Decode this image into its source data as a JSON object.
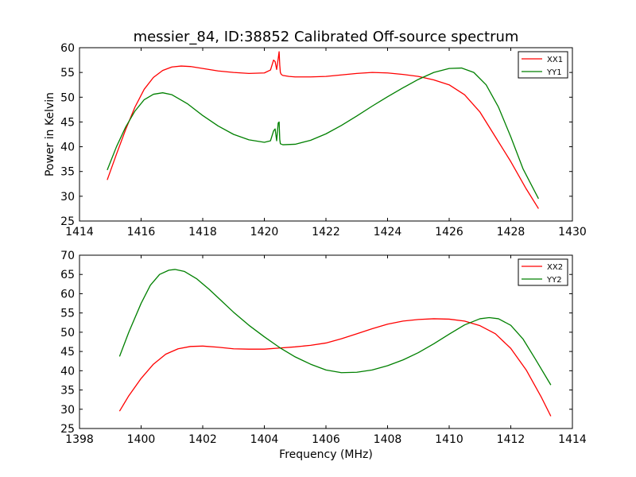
{
  "figure": {
    "title": "messier_84, ID:38852 Calibrated Off-source spectrum",
    "ylabel": "Power in Kelvin",
    "xlabel": "Frequency (MHz)"
  },
  "chart_data": [
    {
      "type": "line",
      "title": "messier_84, ID:38852 Calibrated Off-source spectrum",
      "xlabel": "",
      "ylabel": "Power in Kelvin",
      "xlim": [
        1414,
        1430
      ],
      "ylim": [
        25,
        60
      ],
      "xticks": [
        1414,
        1416,
        1418,
        1420,
        1422,
        1424,
        1426,
        1428,
        1430
      ],
      "yticks": [
        25,
        30,
        35,
        40,
        45,
        50,
        55,
        60
      ],
      "grid": false,
      "legend": "top-right",
      "series": [
        {
          "name": "XX1",
          "color": "#ff0000",
          "x": [
            1414.9,
            1415.2,
            1415.5,
            1415.8,
            1416.1,
            1416.4,
            1416.7,
            1417.0,
            1417.3,
            1417.6,
            1418.0,
            1418.5,
            1419.0,
            1419.5,
            1420.0,
            1420.2,
            1420.3,
            1420.35,
            1420.4,
            1420.45,
            1420.48,
            1420.5,
            1420.52,
            1420.55,
            1420.6,
            1420.8,
            1421.0,
            1421.5,
            1422.0,
            1422.5,
            1423.0,
            1423.5,
            1424.0,
            1424.5,
            1425.0,
            1425.5,
            1426.0,
            1426.5,
            1427.0,
            1427.5,
            1428.0,
            1428.5,
            1428.9
          ],
          "y": [
            33.3,
            38.5,
            43.5,
            48.0,
            51.6,
            54.0,
            55.4,
            56.1,
            56.3,
            56.2,
            55.8,
            55.3,
            55.0,
            54.8,
            54.9,
            55.5,
            57.5,
            57.2,
            55.6,
            57.8,
            59.2,
            56.5,
            55.0,
            54.6,
            54.4,
            54.2,
            54.1,
            54.1,
            54.2,
            54.5,
            54.8,
            55.0,
            54.9,
            54.6,
            54.2,
            53.5,
            52.5,
            50.5,
            47.0,
            42.0,
            37.0,
            31.5,
            27.5
          ]
        },
        {
          "name": "YY1",
          "color": "#008000",
          "x": [
            1414.9,
            1415.2,
            1415.5,
            1415.8,
            1416.1,
            1416.4,
            1416.7,
            1417.0,
            1417.5,
            1418.0,
            1418.5,
            1419.0,
            1419.5,
            1420.0,
            1420.2,
            1420.3,
            1420.35,
            1420.4,
            1420.45,
            1420.48,
            1420.5,
            1420.52,
            1420.6,
            1421.0,
            1421.5,
            1422.0,
            1422.5,
            1423.0,
            1423.5,
            1424.0,
            1424.5,
            1425.0,
            1425.5,
            1426.0,
            1426.4,
            1426.8,
            1427.2,
            1427.6,
            1428.0,
            1428.4,
            1428.9
          ],
          "y": [
            35.3,
            40.0,
            44.0,
            47.2,
            49.5,
            50.6,
            50.9,
            50.5,
            48.7,
            46.3,
            44.2,
            42.5,
            41.4,
            40.9,
            41.2,
            43.2,
            43.6,
            41.2,
            44.8,
            45.0,
            41.5,
            40.6,
            40.4,
            40.5,
            41.3,
            42.6,
            44.3,
            46.2,
            48.2,
            50.1,
            51.9,
            53.6,
            55.0,
            55.8,
            55.9,
            55.0,
            52.5,
            48.0,
            42.0,
            35.5,
            29.5
          ]
        }
      ]
    },
    {
      "type": "line",
      "title": "",
      "xlabel": "Frequency (MHz)",
      "ylabel": "",
      "xlim": [
        1398,
        1414
      ],
      "ylim": [
        25,
        70
      ],
      "xticks": [
        1398,
        1400,
        1402,
        1404,
        1406,
        1408,
        1410,
        1412,
        1414
      ],
      "yticks": [
        25,
        30,
        35,
        40,
        45,
        50,
        55,
        60,
        65,
        70
      ],
      "grid": false,
      "legend": "top-right",
      "series": [
        {
          "name": "XX2",
          "color": "#ff0000",
          "x": [
            1399.3,
            1399.6,
            1400.0,
            1400.4,
            1400.8,
            1401.2,
            1401.6,
            1402.0,
            1402.5,
            1403.0,
            1403.5,
            1404.0,
            1404.5,
            1405.0,
            1405.5,
            1406.0,
            1406.5,
            1407.0,
            1407.5,
            1408.0,
            1408.5,
            1409.0,
            1409.5,
            1410.0,
            1410.5,
            1411.0,
            1411.5,
            1412.0,
            1412.5,
            1413.0,
            1413.3
          ],
          "y": [
            29.5,
            33.5,
            38.0,
            41.7,
            44.3,
            45.7,
            46.3,
            46.4,
            46.1,
            45.7,
            45.6,
            45.6,
            45.9,
            46.2,
            46.6,
            47.2,
            48.3,
            49.6,
            50.9,
            52.1,
            52.9,
            53.3,
            53.5,
            53.4,
            52.9,
            51.7,
            49.6,
            45.8,
            40.2,
            33.0,
            28.2
          ]
        },
        {
          "name": "YY2",
          "color": "#008000",
          "x": [
            1399.3,
            1399.6,
            1400.0,
            1400.3,
            1400.6,
            1400.9,
            1401.1,
            1401.4,
            1401.8,
            1402.2,
            1402.6,
            1403.0,
            1403.5,
            1404.0,
            1404.5,
            1405.0,
            1405.5,
            1406.0,
            1406.5,
            1407.0,
            1407.5,
            1408.0,
            1408.5,
            1409.0,
            1409.5,
            1410.0,
            1410.5,
            1411.0,
            1411.3,
            1411.6,
            1412.0,
            1412.4,
            1412.8,
            1413.3
          ],
          "y": [
            43.7,
            50.0,
            57.5,
            62.2,
            65.0,
            66.1,
            66.3,
            65.8,
            63.9,
            61.2,
            58.2,
            55.2,
            51.8,
            48.8,
            46.0,
            43.6,
            41.7,
            40.2,
            39.5,
            39.6,
            40.2,
            41.3,
            42.8,
            44.7,
            47.0,
            49.5,
            51.9,
            53.5,
            53.8,
            53.5,
            51.8,
            48.2,
            43.0,
            36.3
          ]
        }
      ]
    }
  ]
}
